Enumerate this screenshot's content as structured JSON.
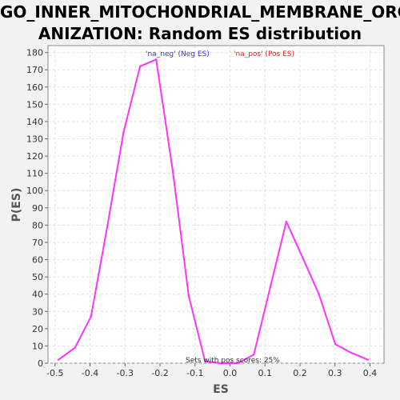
{
  "chart_data": {
    "type": "line",
    "title_line1": "GO_INNER_MITOCHONDRIAL_MEMBRANE_ORG",
    "title_line2": "ANIZATION: Random ES distribution",
    "xlabel": "ES",
    "ylabel": "P(ES)",
    "xlim": [
      -0.52,
      0.44
    ],
    "ylim": [
      0,
      184
    ],
    "x_ticks": [
      -0.5,
      -0.4,
      -0.3,
      -0.2,
      -0.1,
      0.0,
      0.1,
      0.2,
      0.3,
      0.4
    ],
    "x_tick_labels": [
      "-0.5",
      "-0.4",
      "-0.3",
      "-0.2",
      "-0.1",
      "0.0",
      "0.1",
      "0.2",
      "0.3",
      "0.4"
    ],
    "y_ticks": [
      0,
      10,
      20,
      30,
      40,
      50,
      60,
      70,
      80,
      90,
      100,
      110,
      120,
      130,
      140,
      150,
      160,
      170,
      180
    ],
    "grid": true,
    "legend": [
      {
        "label": "'na_neg' (Neg ES)",
        "color": "#3333cc"
      },
      {
        "label": "'na_pos' (Pos ES)",
        "color": "#dd2222"
      }
    ],
    "annotation": "Sets with pos scores: 25%",
    "series": [
      {
        "color": "#ff33ff",
        "x": [
          -0.49,
          -0.443,
          -0.397,
          -0.35,
          -0.304,
          -0.257,
          -0.211,
          -0.164,
          -0.118,
          -0.071,
          -0.025,
          0.022,
          0.068,
          0.115,
          0.161,
          0.208,
          0.254,
          0.301,
          0.347,
          0.394
        ],
        "y": [
          2,
          9,
          27,
          80,
          134,
          172,
          176,
          112,
          39,
          1,
          0,
          0,
          5,
          44,
          82,
          61,
          40,
          11,
          6,
          2
        ]
      }
    ]
  }
}
